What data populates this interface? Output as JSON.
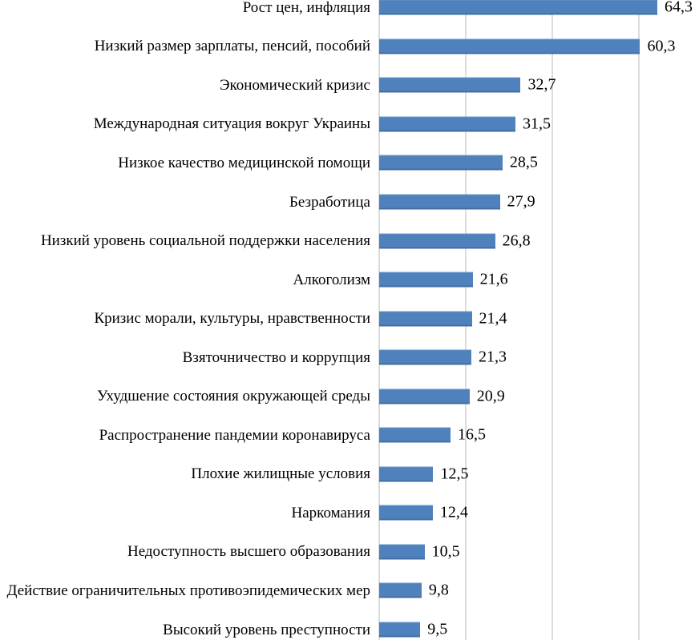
{
  "chart_data": {
    "type": "bar",
    "orientation": "horizontal",
    "title": "",
    "xlabel": "",
    "ylabel": "",
    "categories": [
      "Рост цен, инфляция",
      "Низкий размер зарплаты, пенсий, пособий",
      "Экономический кризис",
      "Международная ситуация вокруг Украины",
      "Низкое качество медицинской помощи",
      "Безработица",
      "Низкий уровень социальной поддержки населения",
      "Алкоголизм",
      "Кризис морали, культуры, нравственности",
      "Взяточничество и коррупция",
      "Ухудшение состояния окружающей среды",
      "Распространение пандемии коронавируса",
      "Плохие жилищные условия",
      "Наркомания",
      "Недоступность высшего образования",
      "Действие ограничительных противоэпидемических мер",
      "Высокий уровень преступности"
    ],
    "values": [
      64.3,
      60.3,
      32.7,
      31.5,
      28.5,
      27.9,
      26.8,
      21.6,
      21.4,
      21.3,
      20.9,
      16.5,
      12.5,
      12.4,
      10.5,
      9.8,
      9.5
    ],
    "value_labels": [
      "64,3",
      "60,3",
      "32,7",
      "31,5",
      "28,5",
      "27,9",
      "26,8",
      "21,6",
      "21,4",
      "21,3",
      "20,9",
      "16,5",
      "12,5",
      "12,4",
      "10,5",
      "9,8",
      "9,5"
    ],
    "decimal_separator": ",",
    "xlim": [
      0,
      73
    ],
    "gridline_values": [
      0,
      20,
      40,
      60
    ],
    "grid": true,
    "legend": "none",
    "bar_color": "#4F81BD",
    "gridline_color": "#DCDCDC",
    "text_color": "#000000",
    "background": "#FFFFFF"
  }
}
